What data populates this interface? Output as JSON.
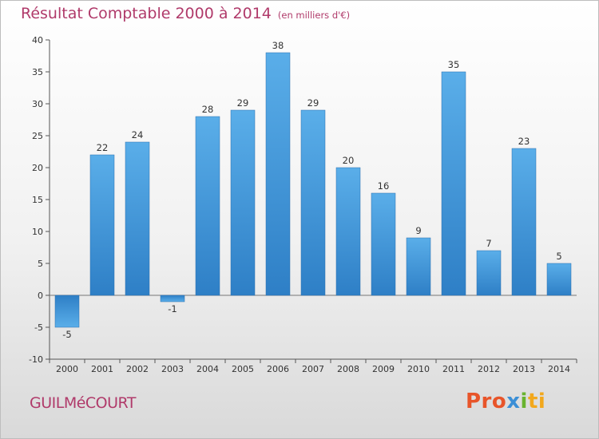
{
  "title": {
    "main": "Résultat Comptable 2000 à 2014",
    "sub": "(en milliers d'€)"
  },
  "commune": "GUILMéCOURT",
  "brand": {
    "parts": [
      "Pro",
      "x",
      "i",
      "ti"
    ]
  },
  "colors": {
    "title": "#b03a6a",
    "bar_top": "#5aaee9",
    "bar_bottom": "#2e7fc6"
  },
  "chart_data": {
    "type": "bar",
    "title": "Résultat Comptable 2000 à 2014",
    "subtitle": "(en milliers d'€)",
    "xlabel": "",
    "ylabel": "",
    "categories": [
      "2000",
      "2001",
      "2002",
      "2003",
      "2004",
      "2005",
      "2006",
      "2007",
      "2008",
      "2009",
      "2010",
      "2011",
      "2012",
      "2013",
      "2014"
    ],
    "values": [
      -5,
      22,
      24,
      -1,
      28,
      29,
      38,
      29,
      20,
      16,
      9,
      35,
      7,
      23,
      5
    ],
    "data_labels": [
      "-5",
      "22",
      "24",
      "-1",
      "28",
      "29",
      "38",
      "29",
      "20",
      "16",
      "9",
      "35",
      "7",
      "23",
      "5"
    ],
    "ylim": [
      -10,
      40
    ],
    "yticks": [
      -10,
      -5,
      0,
      5,
      10,
      15,
      20,
      25,
      30,
      35,
      40
    ],
    "ytick_labels": [
      "-10",
      "-5",
      "0",
      "5",
      "10",
      "15",
      "20",
      "25",
      "30",
      "35",
      "40"
    ],
    "grid": false,
    "legend": "none"
  }
}
